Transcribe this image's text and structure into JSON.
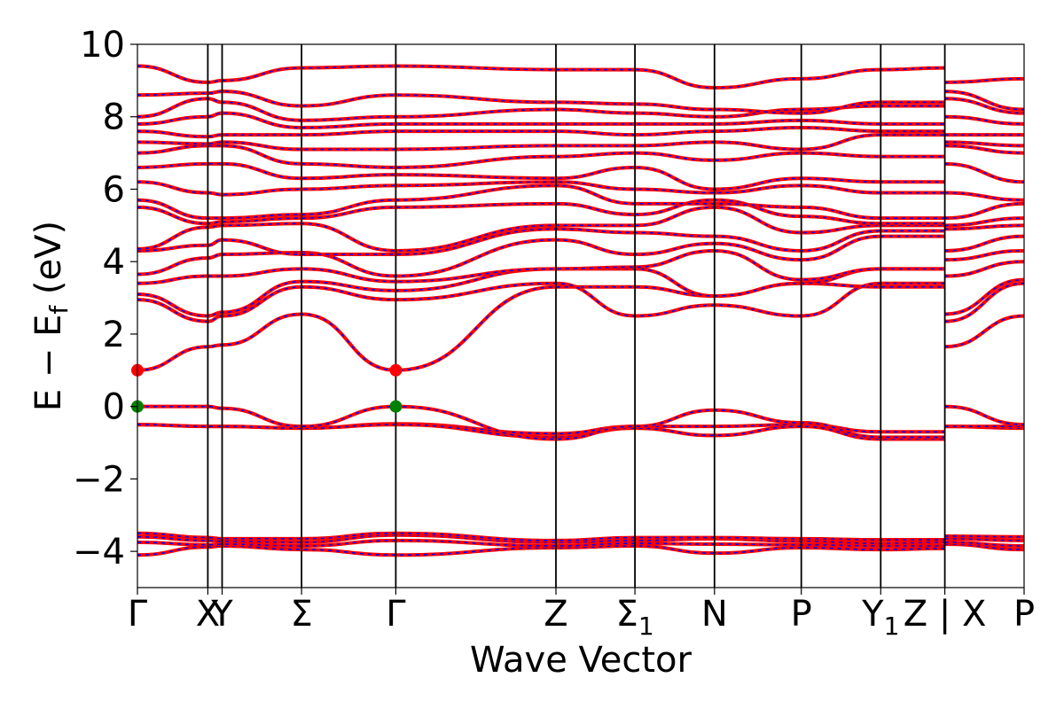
{
  "chart_data": {
    "type": "line",
    "xlabel": "Wave Vector",
    "ylabel": "E − E_f (eV)",
    "ylim": [
      -5,
      10
    ],
    "y_ticks": [
      10,
      8,
      6,
      4,
      2,
      0,
      -2,
      -4
    ],
    "grid": false,
    "high_symmetry_points": [
      {
        "label": "Γ",
        "sub": "",
        "x": 0.0
      },
      {
        "label": "X",
        "sub": "",
        "x": 0.794
      },
      {
        "label": "Y",
        "sub": "",
        "x": 0.955
      },
      {
        "label": "Σ",
        "sub": "",
        "x": 1.851
      },
      {
        "label": "Γ",
        "sub": "",
        "x": 2.914
      },
      {
        "label": "Z",
        "sub": "",
        "x": 4.72
      },
      {
        "label": "Σ",
        "sub": "1",
        "x": 5.611
      },
      {
        "label": "N",
        "sub": "",
        "x": 6.508
      },
      {
        "label": "P",
        "sub": "",
        "x": 7.487
      },
      {
        "label": "Y",
        "sub": "1",
        "x": 8.383
      },
      {
        "label": "Z | X",
        "sub": "",
        "x": 9.106
      },
      {
        "label": "P",
        "sub": "",
        "x": 10.0
      }
    ],
    "xlim": [
      0,
      10
    ],
    "series_colors": {
      "main": "#ff0000",
      "overlay": "#0000ff"
    },
    "markers": [
      {
        "x": 0.0,
        "y": 1.0,
        "color": "#ff0000"
      },
      {
        "x": 2.914,
        "y": 1.0,
        "color": "#ff0000"
      },
      {
        "x": 0.0,
        "y": 0.0,
        "color": "#008000"
      },
      {
        "x": 2.914,
        "y": 0.0,
        "color": "#008000"
      }
    ],
    "bands": [
      {
        "x": [
          0,
          0.794,
          0.955,
          1.851,
          2.914,
          4.72,
          5.611,
          6.508,
          7.487,
          8.383,
          9.106
        ],
        "y": [
          -4.1,
          -3.88,
          -3.85,
          -3.95,
          -4.1,
          -3.9,
          -3.85,
          -4.05,
          -3.9,
          -3.95,
          -3.92
        ],
        "x2": [
          9.106,
          10.0
        ],
        "y2": [
          -3.8,
          -3.95
        ]
      },
      {
        "x": [
          0,
          0.794,
          0.955,
          1.851,
          2.914,
          4.72,
          5.611,
          6.508,
          7.487,
          8.383,
          9.106
        ],
        "y": [
          -3.75,
          -3.82,
          -3.8,
          -3.85,
          -3.7,
          -3.85,
          -3.78,
          -3.8,
          -3.82,
          -3.85,
          -3.85
        ],
        "x2": [
          9.106,
          10.0
        ],
        "y2": [
          -3.75,
          -3.85
        ]
      },
      {
        "x": [
          0,
          0.794,
          0.955,
          1.851,
          2.914,
          4.72,
          5.611,
          6.508,
          7.487,
          8.383,
          9.106
        ],
        "y": [
          -3.6,
          -3.7,
          -3.72,
          -3.75,
          -3.55,
          -3.75,
          -3.7,
          -3.65,
          -3.72,
          -3.78,
          -3.75
        ],
        "x2": [
          9.106,
          10.0
        ],
        "y2": [
          -3.65,
          -3.7
        ]
      },
      {
        "x": [
          0,
          0.794,
          0.955,
          1.851,
          2.914,
          4.72,
          5.611,
          6.508,
          7.487,
          8.383,
          9.106
        ],
        "y": [
          -3.5,
          -3.62,
          -3.65,
          -3.65,
          -3.5,
          -3.7,
          -3.62,
          -3.62,
          -3.65,
          -3.68,
          -3.68
        ],
        "x2": [
          9.106,
          10.0
        ],
        "y2": [
          -3.58,
          -3.6
        ]
      },
      {
        "x": [
          0,
          0.794,
          0.955,
          1.851,
          2.914,
          4.72,
          5.611,
          6.508,
          7.487,
          8.383,
          9.106
        ],
        "y": [
          -0.5,
          -0.55,
          -0.55,
          -0.6,
          -0.48,
          -0.75,
          -0.55,
          -0.55,
          -0.5,
          -0.7,
          -0.7
        ],
        "x2": [
          9.106,
          10.0
        ],
        "y2": [
          -0.55,
          -0.6
        ]
      },
      {
        "x": [
          0,
          0.794,
          0.955,
          1.851,
          2.914,
          4.72,
          5.611,
          6.508,
          7.487,
          8.383,
          9.106
        ],
        "y": [
          -0.5,
          -0.55,
          -0.55,
          -0.6,
          -0.5,
          -0.85,
          -0.6,
          -0.8,
          -0.55,
          -0.9,
          -0.9
        ],
        "x2": [
          9.106,
          10.0
        ],
        "y2": [
          -0.55,
          -0.55
        ]
      },
      {
        "x": [
          0,
          0.794,
          0.955,
          1.851,
          2.914,
          4.72,
          5.611,
          6.508,
          7.487,
          8.383,
          9.106
        ],
        "y": [
          0.0,
          0.0,
          -0.05,
          -0.55,
          0.0,
          -0.9,
          -0.55,
          -0.1,
          -0.45,
          -0.85,
          -0.85
        ],
        "x2": [
          9.106,
          10.0
        ],
        "y2": [
          0.0,
          -0.5
        ]
      },
      {
        "x": [
          0,
          0.794,
          0.955,
          1.851,
          2.914,
          4.72,
          5.611,
          6.508,
          7.487,
          8.383,
          9.106
        ],
        "y": [
          1.0,
          1.65,
          1.7,
          2.55,
          1.0,
          3.3,
          3.3,
          3.05,
          3.4,
          3.3,
          3.3
        ],
        "x2": [
          9.106,
          10.0
        ],
        "y2": [
          1.65,
          2.5
        ]
      },
      {
        "x": [
          0,
          0.794,
          0.955,
          1.851,
          2.914,
          4.72,
          5.611,
          6.508,
          7.487,
          8.383,
          9.106
        ],
        "y": [
          2.95,
          2.35,
          2.5,
          3.3,
          2.95,
          3.4,
          2.5,
          2.8,
          2.5,
          3.4,
          3.4
        ],
        "x2": [
          9.106,
          10.0
        ],
        "y2": [
          2.35,
          3.4
        ]
      },
      {
        "x": [
          0,
          0.794,
          0.955,
          1.851,
          2.914,
          4.72,
          5.611,
          6.508,
          7.487,
          8.383,
          9.106
        ],
        "y": [
          3.1,
          2.5,
          2.6,
          3.45,
          3.2,
          3.8,
          3.8,
          3.05,
          3.4,
          3.8,
          3.8
        ],
        "x2": [
          9.106,
          10.0
        ],
        "y2": [
          2.55,
          3.5
        ]
      },
      {
        "x": [
          0,
          0.794,
          0.955,
          1.851,
          2.914,
          4.72,
          5.611,
          6.508,
          7.487,
          8.383,
          9.106
        ],
        "y": [
          3.4,
          3.6,
          3.6,
          3.8,
          3.45,
          3.8,
          3.85,
          4.3,
          3.5,
          3.8,
          3.8
        ],
        "x2": [
          9.106,
          10.0
        ],
        "y2": [
          3.6,
          4.0
        ]
      },
      {
        "x": [
          0,
          0.794,
          0.955,
          1.851,
          2.914,
          4.72,
          5.611,
          6.508,
          7.487,
          8.383,
          9.106
        ],
        "y": [
          3.65,
          4.1,
          4.2,
          4.25,
          3.6,
          4.6,
          4.2,
          4.5,
          4.05,
          4.7,
          4.7
        ],
        "x2": [
          9.106,
          10.0
        ],
        "y2": [
          4.05,
          4.3
        ]
      },
      {
        "x": [
          0,
          0.794,
          0.955,
          1.851,
          2.914,
          4.72,
          5.611,
          6.508,
          7.487,
          8.383,
          9.106
        ],
        "y": [
          4.3,
          4.45,
          4.6,
          4.2,
          4.2,
          4.9,
          4.8,
          4.7,
          4.3,
          4.85,
          4.85
        ],
        "x2": [
          9.106,
          10.0
        ],
        "y2": [
          4.3,
          4.7
        ]
      },
      {
        "x": [
          0,
          0.794,
          0.955,
          1.851,
          2.914,
          4.72,
          5.611,
          6.508,
          7.487,
          8.383,
          9.106
        ],
        "y": [
          4.35,
          4.95,
          5.0,
          5.05,
          4.3,
          5.0,
          5.0,
          5.5,
          4.8,
          5.0,
          5.0
        ],
        "x2": [
          9.106,
          10.0
        ],
        "y2": [
          4.9,
          5.0
        ]
      },
      {
        "x": [
          0,
          0.794,
          0.955,
          1.851,
          2.914,
          4.72,
          5.611,
          6.508,
          7.487,
          8.383,
          9.106
        ],
        "y": [
          5.5,
          5.05,
          5.1,
          5.2,
          5.5,
          5.6,
          5.3,
          5.7,
          5.25,
          5.05,
          5.05
        ],
        "x2": [
          9.106,
          10.0
        ],
        "y2": [
          5.0,
          5.2
        ]
      },
      {
        "x": [
          0,
          0.794,
          0.955,
          1.851,
          2.914,
          4.72,
          5.611,
          6.508,
          7.487,
          8.383,
          9.106
        ],
        "y": [
          5.7,
          5.2,
          5.2,
          5.3,
          5.7,
          6.1,
          5.6,
          5.6,
          5.5,
          5.2,
          5.2
        ],
        "x2": [
          9.106,
          10.0
        ],
        "y2": [
          5.2,
          5.6
        ]
      },
      {
        "x": [
          0,
          0.794,
          0.955,
          1.851,
          2.914,
          4.72,
          5.611,
          6.508,
          7.487,
          8.383,
          9.106
        ],
        "y": [
          6.2,
          5.9,
          5.85,
          6.0,
          6.1,
          6.2,
          6.0,
          5.9,
          6.1,
          5.9,
          5.9
        ],
        "x2": [
          9.106,
          10.0
        ],
        "y2": [
          5.9,
          5.7
        ]
      },
      {
        "x": [
          0,
          0.794,
          0.955,
          1.851,
          2.914,
          4.72,
          5.611,
          6.508,
          7.487,
          8.383,
          9.106
        ],
        "y": [
          6.6,
          6.7,
          6.7,
          6.3,
          6.4,
          6.3,
          6.6,
          6.0,
          6.3,
          6.2,
          6.2
        ],
        "x2": [
          9.106,
          10.0
        ],
        "y2": [
          6.7,
          6.2
        ]
      },
      {
        "x": [
          0,
          0.794,
          0.955,
          1.851,
          2.914,
          4.72,
          5.611,
          6.508,
          7.487,
          8.383,
          9.106
        ],
        "y": [
          7.0,
          7.2,
          7.2,
          6.7,
          6.6,
          6.9,
          7.0,
          6.8,
          7.0,
          6.9,
          6.9
        ],
        "x2": [
          9.106,
          10.0
        ],
        "y2": [
          7.2,
          7.0
        ]
      },
      {
        "x": [
          0,
          0.794,
          0.955,
          1.851,
          2.914,
          4.72,
          5.611,
          6.508,
          7.487,
          8.383,
          9.106
        ],
        "y": [
          7.3,
          7.25,
          7.3,
          7.1,
          7.1,
          7.2,
          7.2,
          7.3,
          7.1,
          7.5,
          7.5
        ],
        "x2": [
          9.106,
          10.0
        ],
        "y2": [
          7.3,
          7.2
        ]
      },
      {
        "x": [
          0,
          0.794,
          0.955,
          1.851,
          2.914,
          4.72,
          5.611,
          6.508,
          7.487,
          8.383,
          9.106
        ],
        "y": [
          7.6,
          7.45,
          7.5,
          7.5,
          7.6,
          7.6,
          7.5,
          7.6,
          7.7,
          7.6,
          7.6
        ],
        "x2": [
          9.106,
          10.0
        ],
        "y2": [
          7.5,
          7.5
        ]
      },
      {
        "x": [
          0,
          0.794,
          0.955,
          1.851,
          2.914,
          4.72,
          5.611,
          6.508,
          7.487,
          8.383,
          9.106
        ],
        "y": [
          7.8,
          8.0,
          8.1,
          7.7,
          7.8,
          7.8,
          7.8,
          7.8,
          7.9,
          7.8,
          7.8
        ],
        "x2": [
          9.106,
          10.0
        ],
        "y2": [
          8.0,
          7.8
        ]
      },
      {
        "x": [
          0,
          0.794,
          0.955,
          1.851,
          2.914,
          4.72,
          5.611,
          6.508,
          7.487,
          8.383,
          9.106
        ],
        "y": [
          8.0,
          8.5,
          8.4,
          7.9,
          8.0,
          8.2,
          8.1,
          8.0,
          8.2,
          8.3,
          8.3
        ],
        "x2": [
          9.106,
          10.0
        ],
        "y2": [
          8.5,
          8.1
        ]
      },
      {
        "x": [
          0,
          0.794,
          0.955,
          1.851,
          2.914,
          4.72,
          5.611,
          6.508,
          7.487,
          8.383,
          9.106
        ],
        "y": [
          8.6,
          8.65,
          8.7,
          8.3,
          8.6,
          8.4,
          8.35,
          8.2,
          8.1,
          8.4,
          8.4
        ],
        "x2": [
          9.106,
          10.0
        ],
        "y2": [
          8.7,
          8.2
        ]
      },
      {
        "x": [
          0,
          0.794,
          0.955,
          1.851,
          2.914,
          4.72,
          5.611,
          6.508,
          7.487,
          8.383,
          9.106
        ],
        "y": [
          9.4,
          8.95,
          9.0,
          9.35,
          9.4,
          9.3,
          9.3,
          8.8,
          9.05,
          9.3,
          9.35
        ],
        "x2": [
          9.106,
          10.0
        ],
        "y2": [
          8.95,
          9.05
        ]
      }
    ]
  }
}
